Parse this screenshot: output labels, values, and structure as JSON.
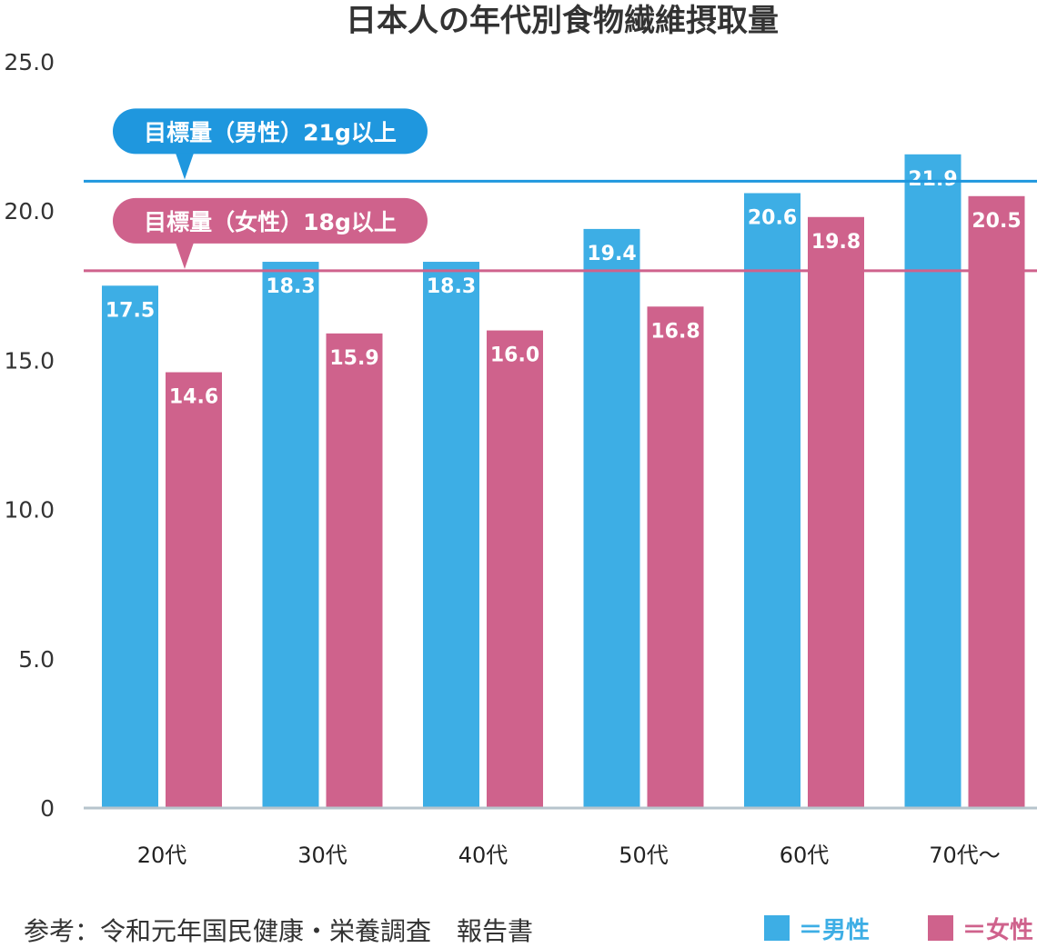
{
  "colors": {
    "male": "#3daee5",
    "female": "#cf628c",
    "male_line": "#1f97de",
    "axis": "#b7c4cc"
  },
  "chart_data": {
    "type": "bar",
    "title": "日本人の年代別食物繊維摂取量",
    "categories": [
      "20代",
      "30代",
      "40代",
      "50代",
      "60代",
      "70代〜"
    ],
    "series": [
      {
        "name": "男性",
        "values": [
          17.5,
          18.3,
          18.3,
          19.4,
          20.6,
          21.9
        ]
      },
      {
        "name": "女性",
        "values": [
          14.6,
          15.9,
          16.0,
          16.8,
          19.8,
          20.5
        ]
      }
    ],
    "y_ticks": [
      "0",
      "5.0",
      "10.0",
      "15.0",
      "20.0",
      "25.0"
    ],
    "ylim": [
      0,
      25
    ],
    "grid": false,
    "legend_position": "bottom-right",
    "targets": [
      {
        "label": "目標量（男性）21g以上",
        "value": 21,
        "series": "男性"
      },
      {
        "label": "目標量（女性）18g以上",
        "value": 18,
        "series": "女性"
      }
    ]
  },
  "legend": {
    "male_label": "＝男性",
    "female_label": "＝女性"
  },
  "source": "参考：令和元年国民健康・栄養調査　報告書"
}
